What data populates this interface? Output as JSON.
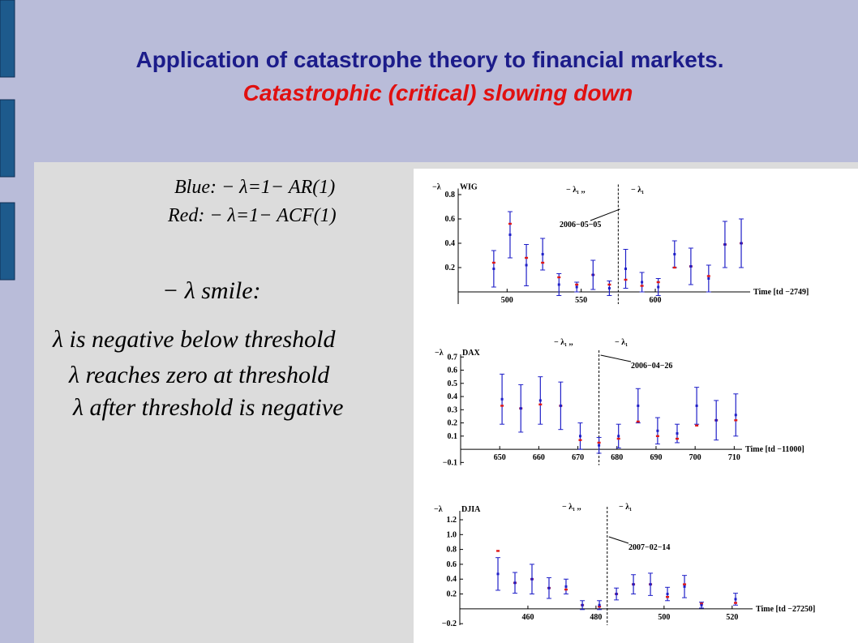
{
  "slide": {
    "title": "Application of catastrophe theory to financial markets.",
    "subtitle": "Catastrophic (critical) slowing down"
  },
  "formulas": [
    "Blue: − λ=1− AR(1)",
    "Red: − λ=1− ACF(1)"
  ],
  "smile": {
    "heading": "− λ  smile:",
    "lines": [
      "λ  is negative below  threshold",
      "λ  reaches zero at threshold",
      "λ  after threshold is negative"
    ]
  },
  "chart_data": [
    {
      "type": "errorbar",
      "title": "WIG",
      "ylabel": "−λ",
      "xlabel": "Time [td −2749]",
      "annotations": [
        "− λ₁ ,,",
        "− λ₁",
        "2006−05−05"
      ],
      "threshold": 575,
      "xlim": [
        467,
        664
      ],
      "ylim": [
        -0.1,
        0.85
      ],
      "xticks": [
        500,
        550,
        600
      ],
      "yticks": [
        0.2,
        0.4,
        0.6,
        0.8
      ],
      "x": [
        491,
        502,
        513,
        524,
        535,
        547,
        558,
        569,
        580,
        591,
        602,
        613,
        624,
        636,
        647,
        658
      ],
      "series": [
        {
          "color": "#1f1fc8",
          "values": [
            0.19,
            0.47,
            0.22,
            0.31,
            0.06,
            0.04,
            0.14,
            0.03,
            0.19,
            0.08,
            0.04,
            0.31,
            0.21,
            0.11,
            0.39,
            0.4
          ],
          "errors": [
            0.15,
            0.19,
            0.17,
            0.13,
            0.09,
            0.04,
            0.12,
            0.06,
            0.16,
            0.08,
            0.07,
            0.11,
            0.15,
            0.11,
            0.19,
            0.2
          ]
        },
        {
          "color": "#e01818",
          "values": [
            0.24,
            0.56,
            0.28,
            0.24,
            0.12,
            0.06,
            0.14,
            0.06,
            0.1,
            0.05,
            0.08,
            0.2,
            0.21,
            0.13,
            0.39,
            0.4
          ]
        }
      ]
    },
    {
      "type": "errorbar",
      "title": "DAX",
      "ylabel": "−λ",
      "xlabel": "Time [td −11000]",
      "annotations": [
        "− λ₁ ,,",
        "− λ₁",
        "2006−04−26"
      ],
      "threshold": 675.4,
      "xlim": [
        640,
        712
      ],
      "ylim": [
        -0.12,
        0.72
      ],
      "xticks": [
        650,
        660,
        670,
        680,
        690,
        700,
        710
      ],
      "yticks": [
        {
          "value": -0.1,
          "label": "−0.1"
        },
        0.1,
        0.2,
        0.3,
        0.4,
        0.5,
        0.6,
        0.7
      ],
      "x": [
        650.6,
        655.4,
        660.4,
        665.6,
        670.6,
        675.4,
        680.4,
        685.4,
        690.4,
        695.4,
        700.4,
        705.4,
        710.4
      ],
      "series": [
        {
          "color": "#1f1fc8",
          "values": [
            0.38,
            0.31,
            0.37,
            0.33,
            0.1,
            0.03,
            0.1,
            0.33,
            0.14,
            0.12,
            0.33,
            0.22,
            0.26
          ],
          "errors": [
            0.19,
            0.18,
            0.18,
            0.18,
            0.1,
            0.06,
            0.09,
            0.13,
            0.1,
            0.07,
            0.14,
            0.15,
            0.16
          ]
        },
        {
          "color": "#e01818",
          "values": [
            0.33,
            0.31,
            0.34,
            0.33,
            0.07,
            0.05,
            0.08,
            0.21,
            0.1,
            0.08,
            0.18,
            0.22,
            0.22
          ]
        }
      ]
    },
    {
      "type": "errorbar",
      "title": "DJIA",
      "ylabel": "−λ",
      "xlabel": "Time [td −27250]",
      "annotations": [
        "− λ₁ ,,",
        "− λ₁",
        "2007−02−14"
      ],
      "threshold": 483.3,
      "xlim": [
        440,
        526
      ],
      "ylim": [
        -0.22,
        1.32
      ],
      "xticks": [
        460,
        480,
        500,
        520
      ],
      "yticks": [
        {
          "value": -0.2,
          "label": "−0.2"
        },
        0.2,
        0.4,
        0.6,
        0.8,
        {
          "value": 1.0,
          "label": "1.0"
        },
        1.2
      ],
      "x": [
        451.2,
        456.2,
        461.2,
        466.2,
        471.2,
        476,
        481,
        486,
        491,
        496,
        501,
        506,
        511,
        521
      ],
      "series": [
        {
          "color": "#1f1fc8",
          "values": [
            0.47,
            0.35,
            0.4,
            0.28,
            0.3,
            0.05,
            0.05,
            0.2,
            0.33,
            0.33,
            0.2,
            0.3,
            0.05,
            0.13
          ],
          "errors": [
            0.22,
            0.14,
            0.2,
            0.14,
            0.1,
            0.06,
            0.06,
            0.08,
            0.13,
            0.15,
            0.09,
            0.15,
            0.04,
            0.08
          ]
        },
        {
          "color": "#e01818",
          "values": [
            0.78,
            0.35,
            0.4,
            0.28,
            0.26,
            0.05,
            0.03,
            0.2,
            0.33,
            0.33,
            0.16,
            0.33,
            0.07,
            0.08
          ]
        }
      ]
    }
  ]
}
